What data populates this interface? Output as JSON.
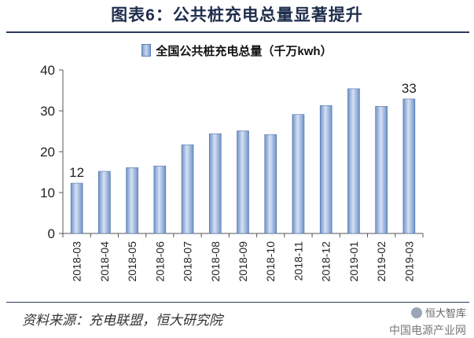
{
  "header": {
    "title": "图表6：公共桩充电总量显著提升"
  },
  "footer": {
    "source": "资料来源：充电联盟，恒大研究院"
  },
  "watermark": {
    "line1": "恒大智库",
    "line2": "中国电源产业网"
  },
  "colors": {
    "bar_dark": "#6f92c9",
    "bar_light": "#d6e1f3",
    "bar_edge": "#4f6fa3"
  },
  "chart_data": {
    "type": "bar",
    "legend": [
      "全国公共桩充电总量（千万kwh）"
    ],
    "categories": [
      "2018-03",
      "2018-04",
      "2018-05",
      "2018-06",
      "2018-07",
      "2018-08",
      "2018-09",
      "2018-10",
      "2018-11",
      "2018-12",
      "2019-01",
      "2019-02",
      "2019-03"
    ],
    "series": [
      {
        "name": "全国公共桩充电总量（千万kwh）",
        "values": [
          12.3,
          15.2,
          16.1,
          16.5,
          21.7,
          24.4,
          25.1,
          24.2,
          29.1,
          31.3,
          35.4,
          31.1,
          32.9
        ]
      }
    ],
    "data_labels": [
      {
        "index": 0,
        "text": "12"
      },
      {
        "index": 12,
        "text": "33"
      }
    ],
    "yticks": [
      0,
      10,
      20,
      30,
      40
    ],
    "ylim": [
      0,
      40
    ],
    "grid": false,
    "legend_position": "top-center"
  }
}
